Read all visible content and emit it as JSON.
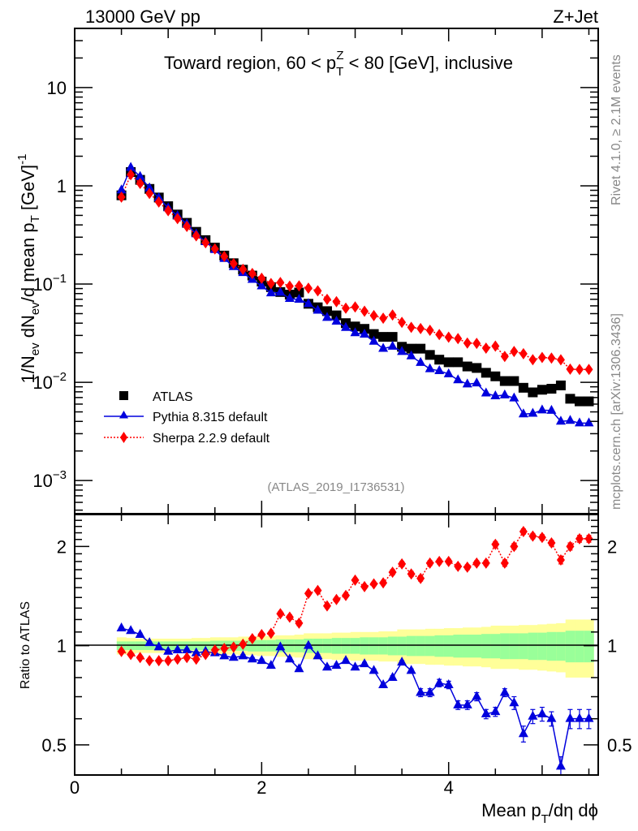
{
  "header": {
    "left": "13000 GeV pp",
    "right": "Z+Jet"
  },
  "side_labels": {
    "rivet": "Rivet 4.1.0, ≥ 2.1M events",
    "mcplots": "mcplots.cern.ch [arXiv:1306.3436]"
  },
  "chart_data": [
    {
      "type": "scatter",
      "title": "Toward region, 60 < p_T^Z < 80 [GeV], inclusive",
      "title_parts": {
        "pre": "Toward region, 60 < p",
        "sup": "Z",
        "sub": "T",
        "post": " < 80 [GeV], inclusive"
      },
      "annotation": "(ATLAS_2019_I1736531)",
      "xlabel": "Mean p_T/dη dϕ",
      "xlabel_parts": {
        "pre": "Mean p",
        "sub": "T",
        "post": "/dη dϕ"
      },
      "ylabel": "1/N_ev dN_ev/d mean p_T [GeV]^-1",
      "ylabel_parts": {
        "a": "1/N",
        "a_sub": "ev",
        "b": " dN",
        "b_sub": "ev",
        "c": "/d mean p",
        "c_sub": "T",
        "d": " [GeV]",
        "d_sup": "-1"
      },
      "yscale": "log",
      "xlim": [
        0,
        5.6
      ],
      "ylim": [
        0.00046,
        40
      ],
      "xticks": [
        0,
        2,
        4
      ],
      "xtick_labels": [
        "0",
        "2",
        "4"
      ],
      "yticks": [
        10,
        1,
        0.1,
        0.01,
        0.001
      ],
      "ytick_labels": [
        {
          "base": "10",
          "exp": ""
        },
        {
          "base": "1",
          "exp": ""
        },
        {
          "base": "10",
          "exp": "−1"
        },
        {
          "base": "10",
          "exp": "−2"
        },
        {
          "base": "10",
          "exp": "−3"
        }
      ],
      "legend_position": "lower-left",
      "x": [
        0.5,
        0.6,
        0.7,
        0.8,
        0.9,
        1.0,
        1.1,
        1.2,
        1.3,
        1.4,
        1.5,
        1.6,
        1.7,
        1.8,
        1.9,
        2.0,
        2.1,
        2.2,
        2.3,
        2.4,
        2.5,
        2.6,
        2.7,
        2.8,
        2.9,
        3.0,
        3.1,
        3.2,
        3.3,
        3.4,
        3.5,
        3.6,
        3.7,
        3.8,
        3.9,
        4.0,
        4.1,
        4.2,
        4.3,
        4.4,
        4.5,
        4.6,
        4.7,
        4.8,
        4.9,
        5.0,
        5.1,
        5.2,
        5.3,
        5.4,
        5.5
      ],
      "series": [
        {
          "name": "ATLAS",
          "color": "#000000",
          "marker": "square",
          "values": [
            0.8,
            1.38,
            1.15,
            0.93,
            0.76,
            0.62,
            0.51,
            0.42,
            0.34,
            0.28,
            0.235,
            0.195,
            0.163,
            0.14,
            0.122,
            0.106,
            0.093,
            0.083,
            0.078,
            0.082,
            0.063,
            0.058,
            0.053,
            0.048,
            0.04,
            0.037,
            0.035,
            0.031,
            0.029,
            0.029,
            0.023,
            0.022,
            0.022,
            0.019,
            0.017,
            0.016,
            0.016,
            0.0145,
            0.014,
            0.0125,
            0.0115,
            0.0103,
            0.0103,
            0.0088,
            0.0079,
            0.0084,
            0.0086,
            0.0093,
            0.0068,
            0.0064,
            0.0064
          ]
        },
        {
          "name": "Pythia 8.315 default",
          "color": "#0000dd",
          "marker": "triangle",
          "line": "solid",
          "ratio": [
            1.13,
            1.11,
            1.08,
            1.02,
            0.99,
            0.96,
            0.97,
            0.97,
            0.95,
            0.96,
            0.95,
            0.93,
            0.92,
            0.93,
            0.91,
            0.9,
            0.87,
            0.99,
            0.91,
            0.85,
            1.0,
            0.93,
            0.86,
            0.87,
            0.9,
            0.86,
            0.88,
            0.84,
            0.76,
            0.8,
            0.89,
            0.84,
            0.72,
            0.72,
            0.77,
            0.76,
            0.66,
            0.66,
            0.7,
            0.62,
            0.63,
            0.72,
            0.67,
            0.54,
            0.61,
            0.62,
            0.6,
            0.43,
            0.6,
            0.6,
            0.6
          ],
          "ratio_err": [
            0.01,
            0.01,
            0.01,
            0.01,
            0.01,
            0.01,
            0.01,
            0.01,
            0.01,
            0.01,
            0.01,
            0.01,
            0.01,
            0.01,
            0.01,
            0.01,
            0.01,
            0.01,
            0.01,
            0.01,
            0.01,
            0.01,
            0.01,
            0.01,
            0.01,
            0.01,
            0.01,
            0.01,
            0.01,
            0.01,
            0.01,
            0.01,
            0.02,
            0.02,
            0.02,
            0.02,
            0.02,
            0.02,
            0.02,
            0.02,
            0.02,
            0.02,
            0.03,
            0.03,
            0.03,
            0.03,
            0.03,
            0.03,
            0.04,
            0.04,
            0.04
          ]
        },
        {
          "name": "Sherpa 2.2.9 default",
          "color": "#ff0000",
          "marker": "diamond",
          "line": "dotted",
          "ratio": [
            0.96,
            0.94,
            0.92,
            0.9,
            0.9,
            0.9,
            0.91,
            0.92,
            0.91,
            0.94,
            0.97,
            0.98,
            0.99,
            1.01,
            1.05,
            1.08,
            1.09,
            1.25,
            1.22,
            1.17,
            1.44,
            1.47,
            1.32,
            1.38,
            1.42,
            1.58,
            1.51,
            1.54,
            1.55,
            1.67,
            1.77,
            1.65,
            1.6,
            1.78,
            1.8,
            1.8,
            1.74,
            1.73,
            1.78,
            1.78,
            2.03,
            1.78,
            2.0,
            2.22,
            2.15,
            2.13,
            2.05,
            1.82,
            2.0,
            2.11,
            2.11
          ],
          "ratio_err": [
            0.01,
            0.01,
            0.01,
            0.01,
            0.01,
            0.01,
            0.01,
            0.01,
            0.01,
            0.01,
            0.01,
            0.01,
            0.01,
            0.01,
            0.01,
            0.01,
            0.01,
            0.02,
            0.02,
            0.02,
            0.02,
            0.02,
            0.02,
            0.02,
            0.02,
            0.02,
            0.02,
            0.02,
            0.02,
            0.03,
            0.03,
            0.03,
            0.03,
            0.03,
            0.03,
            0.03,
            0.03,
            0.03,
            0.03,
            0.03,
            0.04,
            0.04,
            0.04,
            0.04,
            0.04,
            0.04,
            0.04,
            0.05,
            0.05,
            0.05,
            0.05
          ]
        }
      ]
    },
    {
      "type": "line",
      "panel": "ratio",
      "ylabel": "Ratio to ATLAS",
      "yscale": "log",
      "ylim": [
        0.405,
        2.5
      ],
      "yticks": [
        0.5,
        1,
        2
      ],
      "ytick_labels": [
        "0.5",
        "1",
        "2"
      ],
      "reference_line": 1,
      "band_inner_color": "#99ff99",
      "band_outer_color": "#ffff99",
      "band_inner_halfwidth": [
        0.03,
        0.03,
        0.03,
        0.03,
        0.03,
        0.03,
        0.03,
        0.03,
        0.03,
        0.03,
        0.035,
        0.035,
        0.035,
        0.035,
        0.04,
        0.04,
        0.04,
        0.045,
        0.045,
        0.045,
        0.05,
        0.05,
        0.05,
        0.055,
        0.055,
        0.055,
        0.06,
        0.06,
        0.06,
        0.065,
        0.065,
        0.07,
        0.07,
        0.07,
        0.075,
        0.075,
        0.08,
        0.08,
        0.08,
        0.085,
        0.085,
        0.09,
        0.09,
        0.09,
        0.095,
        0.095,
        0.1,
        0.1,
        0.11,
        0.11,
        0.11
      ],
      "band_outer_halfwidth": [
        0.06,
        0.055,
        0.05,
        0.05,
        0.05,
        0.05,
        0.05,
        0.05,
        0.055,
        0.055,
        0.06,
        0.06,
        0.06,
        0.065,
        0.065,
        0.07,
        0.07,
        0.075,
        0.075,
        0.08,
        0.09,
        0.09,
        0.09,
        0.095,
        0.095,
        0.1,
        0.1,
        0.1,
        0.105,
        0.105,
        0.12,
        0.12,
        0.12,
        0.125,
        0.125,
        0.13,
        0.13,
        0.135,
        0.135,
        0.14,
        0.15,
        0.15,
        0.15,
        0.155,
        0.155,
        0.16,
        0.165,
        0.17,
        0.2,
        0.2,
        0.2
      ]
    }
  ]
}
